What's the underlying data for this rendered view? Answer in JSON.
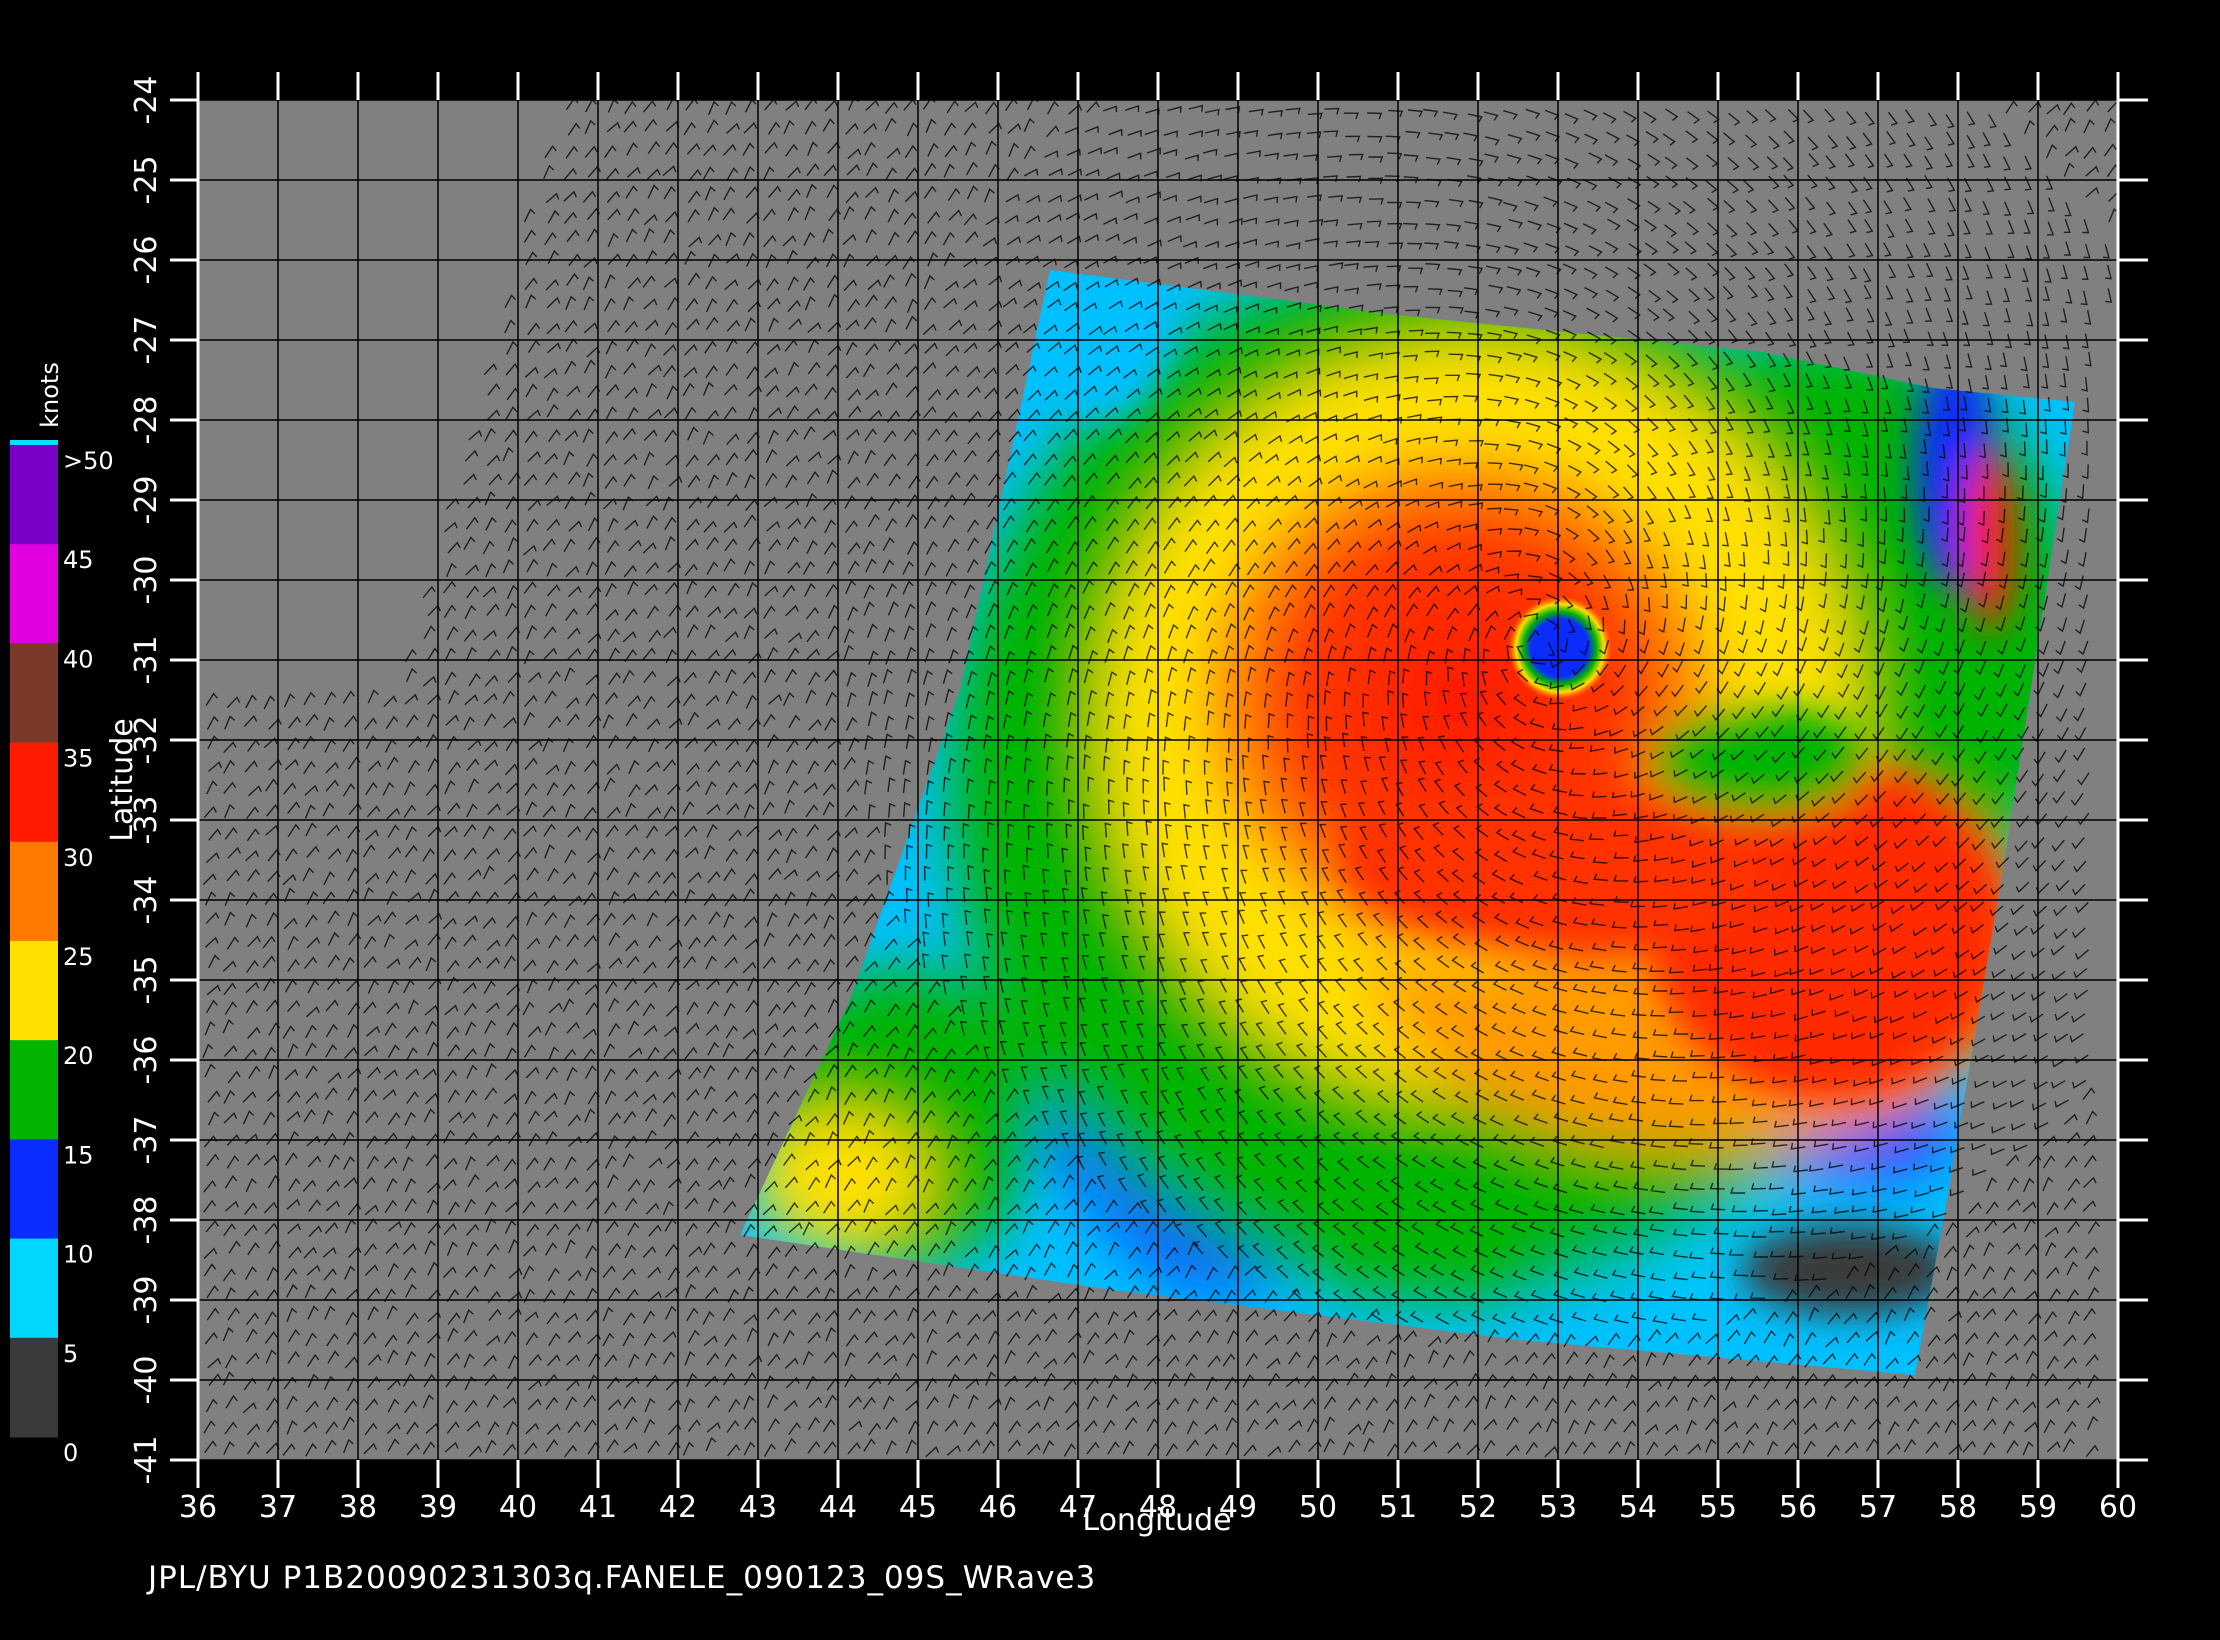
{
  "map": {
    "x_label": "Longitude",
    "y_label": "Latitude",
    "x_ticks": [
      "36",
      "37",
      "38",
      "39",
      "40",
      "41",
      "42",
      "43",
      "44",
      "45",
      "46",
      "47",
      "48",
      "49",
      "50",
      "51",
      "52",
      "53",
      "54",
      "55",
      "56",
      "57",
      "58",
      "59",
      "60"
    ],
    "y_ticks": [
      "-24",
      "-25",
      "-26",
      "-27",
      "-28",
      "-29",
      "-30",
      "-31",
      "-32",
      "-33",
      "-34",
      "-35",
      "-36",
      "-37",
      "-38",
      "-39",
      "-40",
      "-41"
    ],
    "lon_range": [
      36,
      60
    ],
    "lat_range": [
      -24,
      -41
    ],
    "background_color": "#808080",
    "grid": true,
    "storm_center": {
      "lon": 52.8,
      "lat": -30.8
    }
  },
  "legend": {
    "unit_label": "knots",
    "ticks": [
      ">50",
      "45",
      "40",
      "35",
      "30",
      "25",
      "20",
      "15",
      "10",
      "5",
      "0"
    ],
    "bands": [
      {
        "color": "#7a00c8"
      },
      {
        "color": "#e000e0"
      },
      {
        "color": "#7a3a2a"
      },
      {
        "color": "#ff1a00"
      },
      {
        "color": "#ff7a00"
      },
      {
        "color": "#ffe000"
      },
      {
        "color": "#00b400"
      },
      {
        "color": "#0a2cff"
      },
      {
        "color": "#00d8ff"
      },
      {
        "color": "#3a3a3a"
      }
    ]
  },
  "caption": "JPL/BYU  P1B20090231303q.FANELE_090123_09S_WRave3"
}
